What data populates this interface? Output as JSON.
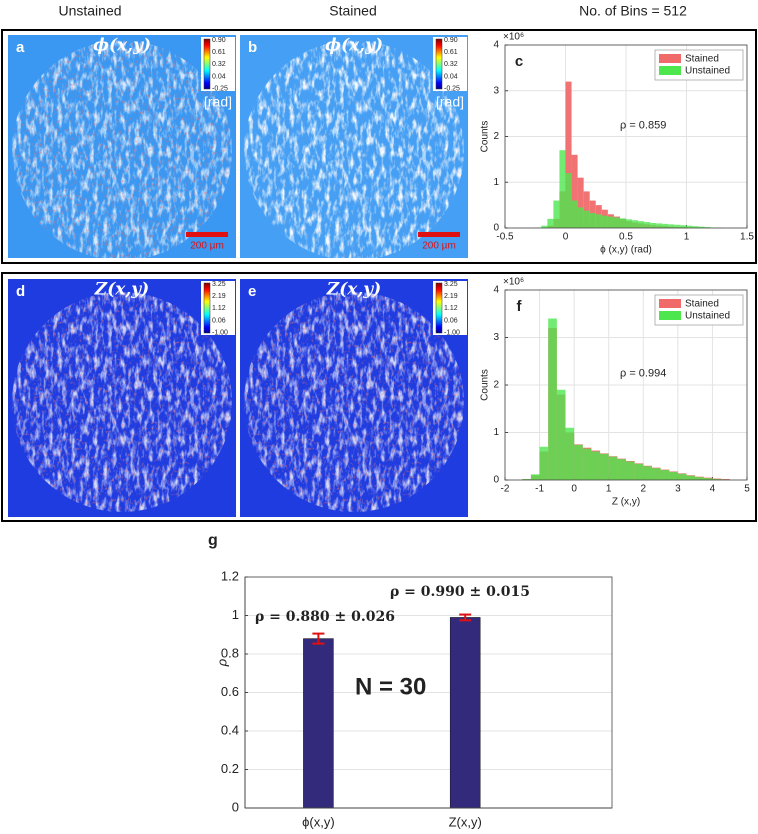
{
  "column_headers": [
    "Unstained",
    "Stained",
    "No. of Bins = 512"
  ],
  "image_panels": [
    {
      "letter": "a",
      "title": "ϕ(x,y)",
      "colorbar_labels": [
        "0.90",
        "0.61",
        "0.32",
        "0.04",
        "-0.25"
      ],
      "unit": "[rad]",
      "scale_bar": "200 µm"
    },
    {
      "letter": "b",
      "title": "ϕ(x,y)",
      "colorbar_labels": [
        "0.90",
        "0.61",
        "0.32",
        "0.04",
        "-0.25"
      ],
      "unit": "[rad]",
      "scale_bar": "200 µm"
    },
    {
      "letter": "d",
      "title": "Z(x,y)",
      "colorbar_labels": [
        "3.25",
        "2.19",
        "1.12",
        "0.06",
        "-1.00"
      ]
    },
    {
      "letter": "e",
      "title": "Z(x,y)",
      "colorbar_labels": [
        "3.25",
        "2.19",
        "1.12",
        "0.06",
        "-1.00"
      ]
    }
  ],
  "chart_data": [
    {
      "type": "histogram",
      "label": "c",
      "xlabel": "ϕ (x,y) (rad)",
      "ylabel": "Counts",
      "y_exponent": "×10⁶",
      "annotation": "ρ = 0.859",
      "bins": [
        -0.3,
        -0.25,
        -0.2,
        -0.15,
        -0.1,
        -0.05,
        0,
        0.05,
        0.1,
        0.15,
        0.2,
        0.25,
        0.3,
        0.35,
        0.4,
        0.45,
        0.5,
        0.55,
        0.6,
        0.65,
        0.7,
        0.75,
        0.8,
        0.85,
        0.9,
        0.95,
        1.0,
        1.05,
        1.1,
        1.15,
        1.2,
        1.25,
        1.3
      ],
      "series": [
        {
          "name": "Stained",
          "color": "#f06a6a",
          "values": [
            0,
            0,
            0.01,
            0.05,
            0.2,
            0.8,
            3.2,
            1.6,
            1.1,
            0.8,
            0.6,
            0.5,
            0.4,
            0.3,
            0.25,
            0.2,
            0.15,
            0.12,
            0.1,
            0.08,
            0.06,
            0.05,
            0.04,
            0.03,
            0.02,
            0.02,
            0.01,
            0.01,
            0.01,
            0,
            0,
            0
          ]
        },
        {
          "name": "Unstained",
          "color": "#4de64d",
          "values": [
            0,
            0.01,
            0.05,
            0.2,
            0.6,
            1.7,
            1.2,
            0.6,
            0.45,
            0.38,
            0.33,
            0.3,
            0.27,
            0.25,
            0.23,
            0.21,
            0.19,
            0.17,
            0.15,
            0.13,
            0.11,
            0.1,
            0.09,
            0.08,
            0.07,
            0.06,
            0.05,
            0.04,
            0.03,
            0.02,
            0.01,
            0.01
          ]
        }
      ],
      "xlim": [
        -0.5,
        1.5
      ],
      "xticks": [
        -0.5,
        0,
        0.5,
        1,
        1.5
      ],
      "ylim": [
        0,
        4
      ],
      "yticks": [
        0,
        1,
        2,
        3,
        4
      ],
      "grid": true,
      "legend": "upper right"
    },
    {
      "type": "histogram",
      "label": "f",
      "xlabel": "Z (x,y)",
      "ylabel": "Counts",
      "y_exponent": "×10⁶",
      "annotation": "ρ = 0.994",
      "bins": [
        -1.5,
        -1.25,
        -1.0,
        -0.75,
        -0.5,
        -0.25,
        0,
        0.25,
        0.5,
        0.75,
        1.0,
        1.25,
        1.5,
        1.75,
        2.0,
        2.25,
        2.5,
        2.75,
        3.0,
        3.25,
        3.5,
        3.75,
        4.0,
        4.25,
        4.5
      ],
      "series": [
        {
          "name": "Stained",
          "color": "#f06a6a",
          "values": [
            0.02,
            0.1,
            0.6,
            3.2,
            1.8,
            1.0,
            0.75,
            0.68,
            0.62,
            0.56,
            0.5,
            0.45,
            0.4,
            0.35,
            0.3,
            0.26,
            0.22,
            0.18,
            0.14,
            0.1,
            0.07,
            0.05,
            0.03,
            0.02
          ]
        },
        {
          "name": "Unstained",
          "color": "#4de64d",
          "values": [
            0.02,
            0.12,
            0.7,
            3.4,
            1.9,
            1.1,
            0.74,
            0.66,
            0.6,
            0.55,
            0.49,
            0.44,
            0.39,
            0.34,
            0.29,
            0.25,
            0.21,
            0.17,
            0.13,
            0.09,
            0.06,
            0.04,
            0.02,
            0.01
          ]
        }
      ],
      "xlim": [
        -2,
        5
      ],
      "xticks": [
        -2,
        -1,
        0,
        1,
        2,
        3,
        4,
        5
      ],
      "ylim": [
        0,
        4
      ],
      "yticks": [
        0,
        1,
        2,
        3,
        4
      ],
      "grid": true,
      "legend": "upper right"
    },
    {
      "type": "bar",
      "label": "g",
      "ylabel": "ρ",
      "categories": [
        "ϕ(x,y)",
        "Z(x,y)"
      ],
      "values": [
        0.88,
        0.99
      ],
      "errors": [
        0.026,
        0.015
      ],
      "color": "#332a7c",
      "error_color": "#e01010",
      "annotations": [
        "ρ = 0.880 ± 0.026",
        "ρ = 0.990 ± 0.015",
        "N = 30"
      ],
      "ylim": [
        0,
        1.2
      ],
      "yticks": [
        0,
        0.2,
        0.4,
        0.6,
        0.8,
        1,
        1.2
      ],
      "grid": true
    }
  ]
}
